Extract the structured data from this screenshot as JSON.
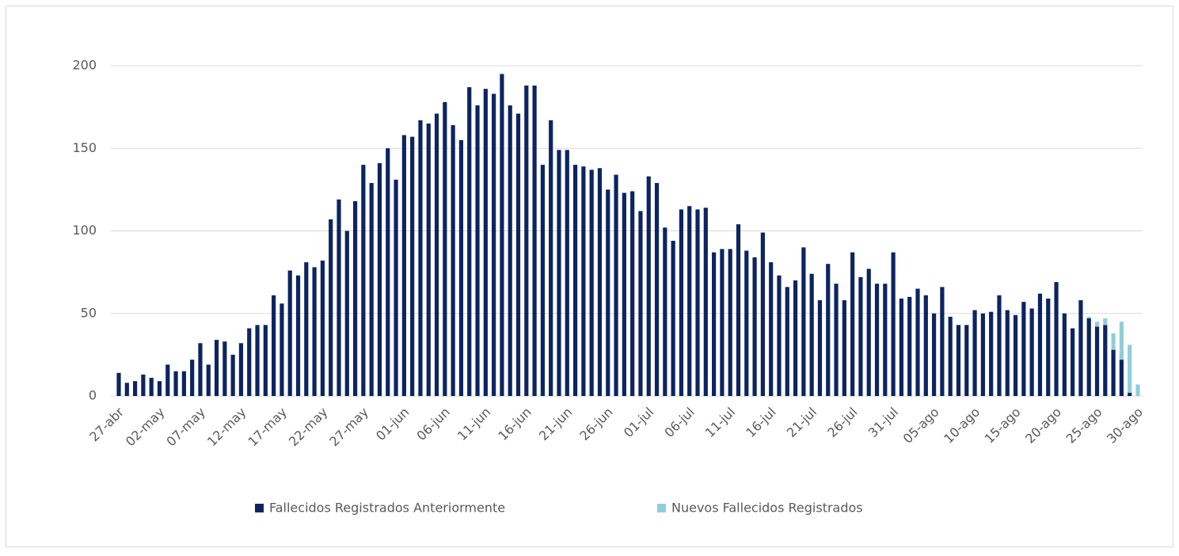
{
  "chart_data": {
    "type": "stacked-bar",
    "categories": [
      "27-abr",
      null,
      null,
      null,
      null,
      "02-may",
      null,
      null,
      null,
      null,
      "07-may",
      null,
      null,
      null,
      null,
      "12-may",
      null,
      null,
      null,
      null,
      "17-may",
      null,
      null,
      null,
      null,
      "22-may",
      null,
      null,
      null,
      null,
      "27-may",
      null,
      null,
      null,
      null,
      "01-jun",
      null,
      null,
      null,
      null,
      "06-jun",
      null,
      null,
      null,
      null,
      "11-jun",
      null,
      null,
      null,
      null,
      "16-jun",
      null,
      null,
      null,
      null,
      "21-jun",
      null,
      null,
      null,
      null,
      "26-jun",
      null,
      null,
      null,
      null,
      "01-jul",
      null,
      null,
      null,
      null,
      "06-jul",
      null,
      null,
      null,
      null,
      "11-jul",
      null,
      null,
      null,
      null,
      "16-jul",
      null,
      null,
      null,
      null,
      "21-jul",
      null,
      null,
      null,
      null,
      "26-jul",
      null,
      null,
      null,
      null,
      "31-jul",
      null,
      null,
      null,
      null,
      "05-ago",
      null,
      null,
      null,
      null,
      "10-ago",
      null,
      null,
      null,
      null,
      "15-ago",
      null,
      null,
      null,
      null,
      "20-ago",
      null,
      null,
      null,
      null,
      "25-ago",
      null,
      null,
      null,
      null,
      "30-ago"
    ],
    "series": [
      {
        "name": "Fallecidos Registrados Anteriormente",
        "color": "#0c2461",
        "values": [
          14,
          8,
          9,
          13,
          11,
          9,
          19,
          15,
          15,
          22,
          32,
          19,
          34,
          33,
          25,
          32,
          41,
          43,
          43,
          61,
          56,
          76,
          73,
          81,
          78,
          82,
          107,
          119,
          100,
          118,
          140,
          129,
          141,
          150,
          131,
          158,
          157,
          167,
          165,
          171,
          178,
          164,
          155,
          187,
          176,
          186,
          183,
          195,
          176,
          171,
          188,
          188,
          140,
          167,
          149,
          149,
          140,
          139,
          137,
          138,
          125,
          134,
          123,
          124,
          112,
          133,
          129,
          102,
          94,
          113,
          115,
          113,
          114,
          87,
          89,
          89,
          104,
          88,
          84,
          99,
          81,
          73,
          66,
          70,
          90,
          74,
          58,
          80,
          68,
          58,
          87,
          72,
          77,
          68,
          68,
          87,
          59,
          60,
          65,
          61,
          50,
          66,
          48,
          43,
          43,
          52,
          50,
          51,
          61,
          52,
          49,
          57,
          53,
          62,
          59,
          69,
          50,
          41,
          58,
          47,
          42,
          43,
          28,
          22,
          2,
          0
        ]
      },
      {
        "name": "Nuevos Fallecidos Registrados",
        "color": "#92cddc",
        "values": [
          0,
          0,
          0,
          0,
          0,
          0,
          0,
          0,
          0,
          0,
          0,
          0,
          0,
          0,
          0,
          0,
          0,
          0,
          0,
          0,
          0,
          0,
          0,
          0,
          0,
          0,
          0,
          0,
          0,
          0,
          0,
          0,
          0,
          0,
          0,
          0,
          0,
          0,
          0,
          0,
          0,
          0,
          0,
          0,
          0,
          0,
          0,
          0,
          0,
          0,
          0,
          0,
          0,
          0,
          0,
          0,
          0,
          0,
          0,
          0,
          0,
          0,
          0,
          0,
          0,
          0,
          0,
          0,
          0,
          0,
          0,
          0,
          0,
          0,
          0,
          0,
          0,
          0,
          0,
          0,
          0,
          0,
          0,
          0,
          0,
          0,
          0,
          0,
          0,
          0,
          0,
          0,
          0,
          0,
          0,
          0,
          0,
          0,
          0,
          0,
          0,
          0,
          0,
          0,
          0,
          0,
          0,
          0,
          0,
          0,
          0,
          0,
          0,
          0,
          0,
          0,
          0,
          0,
          0,
          1,
          3,
          4,
          10,
          23,
          29,
          7
        ]
      }
    ],
    "ylim": [
      0,
      200
    ],
    "yticks": [
      0,
      50,
      100,
      150,
      200
    ],
    "grid": true,
    "legend": "bottom"
  }
}
